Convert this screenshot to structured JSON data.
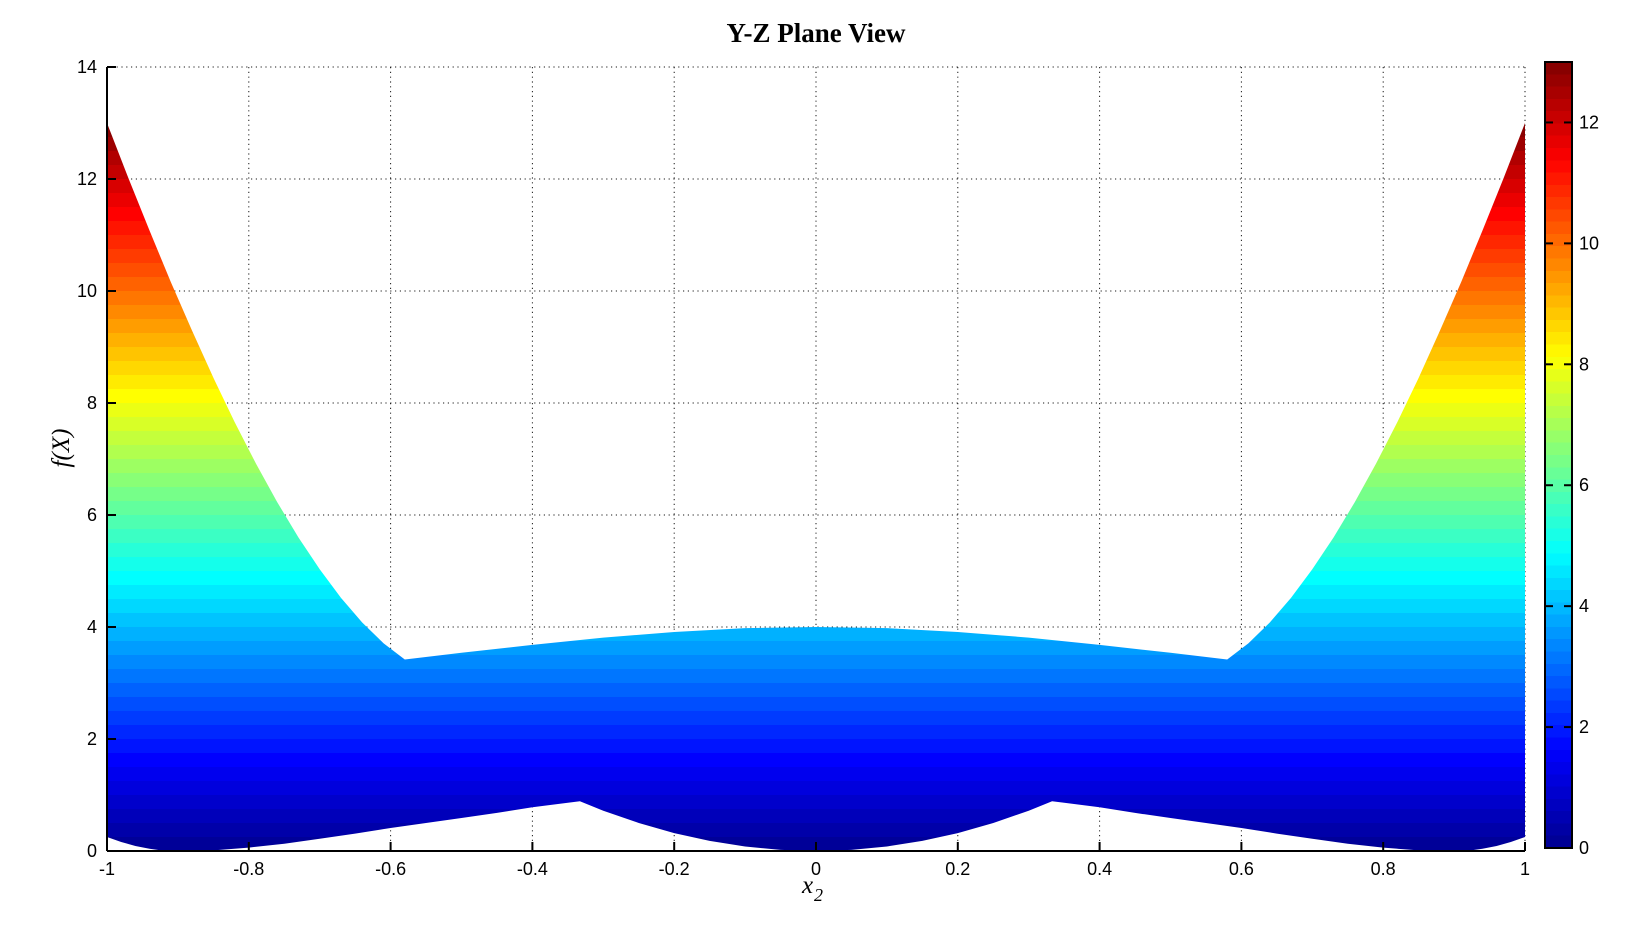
{
  "figure": {
    "background": "#FFFFFF",
    "text_color": "#000000"
  },
  "labels": {
    "title": "Y-Z Plane View",
    "ylabel": "f(X)",
    "xlabel_base": "x",
    "xlabel_sub": "2"
  },
  "chart_data": {
    "type": "area",
    "subtype": "surface-silhouette-projection",
    "title": "Y-Z Plane View",
    "xlabel": "x_2",
    "ylabel": "f(X)",
    "xlim": [
      -1,
      1
    ],
    "ylim": [
      0,
      14
    ],
    "grid": true,
    "grid_style": "dotted",
    "x_ticks": [
      -1,
      -0.8,
      -0.6,
      -0.4,
      -0.2,
      0,
      0.2,
      0.4,
      0.6,
      0.8,
      1
    ],
    "x_tick_labels": [
      "-1",
      "-0.8",
      "-0.6",
      "-0.4",
      "-0.2",
      "0",
      "0.2",
      "0.4",
      "0.6",
      "0.8",
      "1"
    ],
    "y_ticks": [
      0,
      2,
      4,
      6,
      8,
      10,
      12,
      14
    ],
    "y_tick_labels": [
      "0",
      "2",
      "4",
      "6",
      "8",
      "10",
      "12",
      "14"
    ],
    "colormap": {
      "name": "jet",
      "anchors": [
        [
          0.0,
          "#00008F"
        ],
        [
          0.125,
          "#0000FF"
        ],
        [
          0.375,
          "#00FFFF"
        ],
        [
          0.625,
          "#FFFF00"
        ],
        [
          0.875,
          "#FF0000"
        ],
        [
          1.0,
          "#800000"
        ]
      ]
    },
    "fill_band_size": 0.25,
    "colorbar": {
      "vmin": 0,
      "vmax": 13,
      "ticks": [
        0,
        2,
        4,
        6,
        8,
        10,
        12
      ],
      "tick_labels": [
        "0",
        "2",
        "4",
        "6",
        "8",
        "10",
        "12"
      ],
      "bands": 64,
      "position": "right"
    },
    "description": "Y-Z plane silhouette of a 3-D surface f over x2; the band spans [min f, max f] at each x2 and is colored by f with the jet colormap.",
    "upper_envelope": [
      [
        -1,
        13.0
      ],
      [
        -0.97,
        12.02
      ],
      [
        -0.94,
        11.08
      ],
      [
        -0.91,
        10.16
      ],
      [
        -0.88,
        9.29
      ],
      [
        -0.85,
        8.45
      ],
      [
        -0.82,
        7.66
      ],
      [
        -0.79,
        6.92
      ],
      [
        -0.76,
        6.23
      ],
      [
        -0.73,
        5.6
      ],
      [
        -0.7,
        5.03
      ],
      [
        -0.67,
        4.52
      ],
      [
        -0.64,
        4.08
      ],
      [
        -0.61,
        3.71
      ],
      [
        -0.58,
        3.42
      ],
      [
        -0.5,
        3.54
      ],
      [
        -0.4,
        3.68
      ],
      [
        -0.3,
        3.81
      ],
      [
        -0.2,
        3.91
      ],
      [
        -0.1,
        3.98
      ],
      [
        0,
        4.0
      ],
      [
        0.1,
        3.98
      ],
      [
        0.2,
        3.91
      ],
      [
        0.3,
        3.81
      ],
      [
        0.4,
        3.68
      ],
      [
        0.5,
        3.54
      ],
      [
        0.58,
        3.42
      ],
      [
        0.61,
        3.71
      ],
      [
        0.64,
        4.08
      ],
      [
        0.67,
        4.52
      ],
      [
        0.7,
        5.03
      ],
      [
        0.73,
        5.6
      ],
      [
        0.76,
        6.23
      ],
      [
        0.79,
        6.92
      ],
      [
        0.82,
        7.66
      ],
      [
        0.85,
        8.45
      ],
      [
        0.88,
        9.29
      ],
      [
        0.91,
        10.16
      ],
      [
        0.94,
        11.08
      ],
      [
        0.97,
        12.02
      ],
      [
        1,
        13.0
      ]
    ],
    "lower_envelope": [
      [
        -1,
        0.25
      ],
      [
        -0.98,
        0.16
      ],
      [
        -0.96,
        0.09
      ],
      [
        -0.94,
        0.04
      ],
      [
        -0.92,
        0.005
      ],
      [
        -0.9,
        0.0
      ],
      [
        -0.85,
        0.01
      ],
      [
        -0.8,
        0.06
      ],
      [
        -0.75,
        0.13
      ],
      [
        -0.7,
        0.22
      ],
      [
        -0.65,
        0.31
      ],
      [
        -0.6,
        0.41
      ],
      [
        -0.55,
        0.5
      ],
      [
        -0.5,
        0.59
      ],
      [
        -0.45,
        0.68
      ],
      [
        -0.4,
        0.78
      ],
      [
        -0.35,
        0.86
      ],
      [
        -0.333,
        0.89
      ],
      [
        -0.3,
        0.72
      ],
      [
        -0.25,
        0.5
      ],
      [
        -0.2,
        0.32
      ],
      [
        -0.15,
        0.18
      ],
      [
        -0.1,
        0.08
      ],
      [
        -0.05,
        0.02
      ],
      [
        0,
        0.0
      ],
      [
        0.05,
        0.02
      ],
      [
        0.1,
        0.08
      ],
      [
        0.15,
        0.18
      ],
      [
        0.2,
        0.32
      ],
      [
        0.25,
        0.5
      ],
      [
        0.3,
        0.72
      ],
      [
        0.333,
        0.89
      ],
      [
        0.35,
        0.86
      ],
      [
        0.4,
        0.78
      ],
      [
        0.45,
        0.68
      ],
      [
        0.5,
        0.59
      ],
      [
        0.55,
        0.5
      ],
      [
        0.6,
        0.41
      ],
      [
        0.65,
        0.31
      ],
      [
        0.7,
        0.22
      ],
      [
        0.75,
        0.13
      ],
      [
        0.8,
        0.06
      ],
      [
        0.85,
        0.01
      ],
      [
        0.9,
        0.0
      ],
      [
        0.92,
        0.005
      ],
      [
        0.94,
        0.04
      ],
      [
        0.96,
        0.09
      ],
      [
        0.98,
        0.16
      ],
      [
        1,
        0.25
      ]
    ],
    "key_points": {
      "peak_at_edges": 13.0,
      "center_hump_max": 4.0,
      "upper_local_min": {
        "x": 0.58,
        "f": 3.42
      },
      "lower_sharp_peak": {
        "x": 0.333,
        "f": 0.89
      },
      "lower_min_at_center": 0.0
    }
  }
}
